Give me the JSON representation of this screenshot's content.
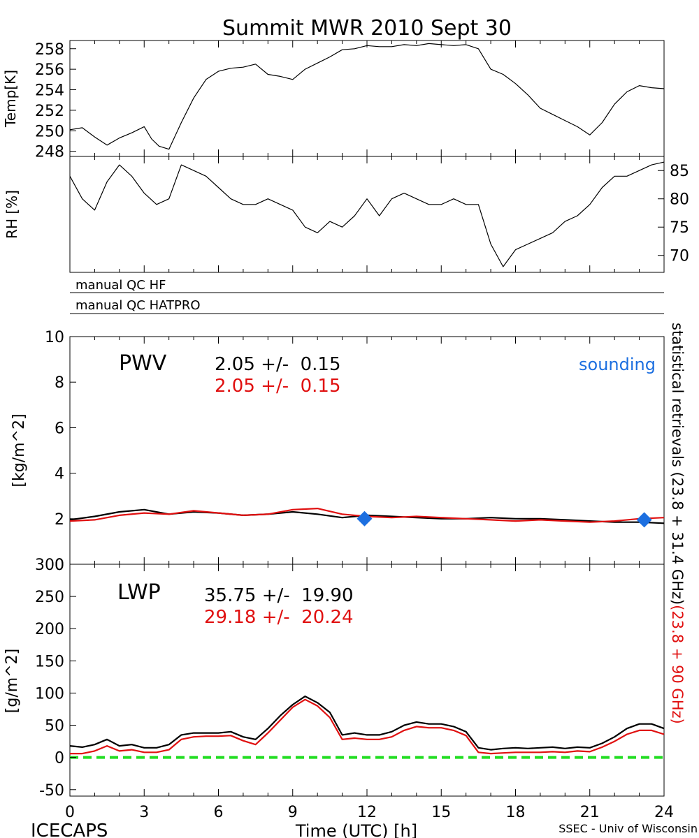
{
  "title": "Summit MWR 2010 Sept 30",
  "footer": {
    "left": "ICECAPS",
    "center": "Time (UTC) [h]",
    "right": "SSEC - Univ of Wisconsin"
  },
  "colors": {
    "black_series": "#000000",
    "red_series": "#e01010",
    "sounding": "#1c6fe0",
    "zero_line": "#22dd22"
  },
  "qc": {
    "hf_label": "manual QC HF",
    "hatpro_label": "manual QC HATPRO"
  },
  "right_label": {
    "black_part": "statistical retrievals (23.8 + 31.4 GHz)",
    "red_part": "(23.8 + 90 GHz)"
  },
  "pwv": {
    "label": "PWV",
    "black_stat": "2.05 +/-  0.15",
    "red_stat": "2.05 +/-  0.15",
    "sounding_label": "sounding"
  },
  "lwp": {
    "label": "LWP",
    "black_stat": "35.75 +/-  19.90",
    "red_stat": "29.18 +/-  20.24"
  },
  "chart_data": [
    {
      "type": "line",
      "panel": "temperature",
      "ylabel": "Temp[K]",
      "xlim": [
        0,
        24
      ],
      "ylim": [
        247.5,
        258.8
      ],
      "yticks": [
        248,
        250,
        252,
        254,
        256,
        258
      ],
      "series": [
        {
          "color": "#000000",
          "x": [
            0,
            0.5,
            1,
            1.5,
            2,
            2.5,
            3,
            3.3,
            3.6,
            4,
            4.5,
            5,
            5.5,
            6,
            6.5,
            7,
            7.5,
            8,
            8.5,
            9,
            9.5,
            10,
            10.5,
            11,
            11.5,
            12,
            12.5,
            13,
            13.5,
            14,
            14.5,
            15,
            15.5,
            16,
            16.5,
            17,
            17.5,
            18,
            18.5,
            19,
            19.5,
            20,
            20.5,
            21,
            21.5,
            22,
            22.5,
            23,
            23.5,
            24
          ],
          "values": [
            250.1,
            250.3,
            249.4,
            248.6,
            249.3,
            249.8,
            250.4,
            249.2,
            248.5,
            248.2,
            250.8,
            253.2,
            255.0,
            255.8,
            256.1,
            256.2,
            256.5,
            255.5,
            255.3,
            255.0,
            256.0,
            256.6,
            257.2,
            257.9,
            258.0,
            258.3,
            258.2,
            258.2,
            258.4,
            258.3,
            258.5,
            258.4,
            258.3,
            258.4,
            258.0,
            256.0,
            255.5,
            254.6,
            253.5,
            252.2,
            251.6,
            251.0,
            250.4,
            249.6,
            250.8,
            252.6,
            253.8,
            254.4,
            254.2,
            254.1
          ]
        }
      ]
    },
    {
      "type": "line",
      "panel": "relative-humidity",
      "ylabel": "RH [%]",
      "xlim": [
        0,
        24
      ],
      "ylim": [
        67,
        87.5
      ],
      "yticks": [
        70,
        75,
        80,
        85
      ],
      "series": [
        {
          "color": "#000000",
          "x": [
            0,
            0.5,
            1,
            1.5,
            2,
            2.5,
            3,
            3.5,
            4,
            4.5,
            5,
            5.5,
            6,
            6.5,
            7,
            7.5,
            8,
            8.5,
            9,
            9.5,
            10,
            10.5,
            11,
            11.5,
            12,
            12.5,
            13,
            13.5,
            14,
            14.5,
            15,
            15.5,
            16,
            16.5,
            17,
            17.5,
            18,
            18.5,
            19,
            19.5,
            20,
            20.5,
            21,
            21.5,
            22,
            22.5,
            23,
            23.5,
            24
          ],
          "values": [
            84,
            80,
            78,
            83,
            86,
            84,
            81,
            79,
            80,
            86,
            85,
            84,
            82,
            80,
            79,
            79,
            80,
            79,
            78,
            75,
            74,
            76,
            75,
            77,
            80,
            77,
            80,
            81,
            80,
            79,
            79,
            80,
            79,
            79,
            72,
            68,
            71,
            72,
            73,
            74,
            76,
            77,
            79,
            82,
            84,
            84,
            85,
            86,
            86.5
          ]
        }
      ]
    },
    {
      "type": "line",
      "panel": "PWV",
      "ylabel": "[kg/m^2]",
      "xlim": [
        0,
        24
      ],
      "ylim": [
        0,
        10
      ],
      "yticks": [
        0,
        2,
        4,
        6,
        8,
        10
      ],
      "series": [
        {
          "color": "#000000",
          "x": [
            0,
            1,
            2,
            3,
            4,
            5,
            6,
            7,
            8,
            9,
            10,
            11,
            12,
            13,
            14,
            15,
            16,
            17,
            18,
            19,
            20,
            21,
            22,
            23,
            24
          ],
          "values": [
            1.95,
            2.1,
            2.3,
            2.4,
            2.2,
            2.3,
            2.25,
            2.15,
            2.2,
            2.3,
            2.2,
            2.05,
            2.15,
            2.1,
            2.05,
            2.0,
            2.0,
            2.05,
            2.0,
            2.0,
            1.95,
            1.9,
            1.85,
            1.85,
            1.8
          ]
        },
        {
          "color": "#e01010",
          "x": [
            0,
            1,
            2,
            3,
            4,
            5,
            6,
            7,
            8,
            9,
            10,
            11,
            12,
            13,
            14,
            15,
            16,
            17,
            18,
            19,
            20,
            21,
            22,
            23,
            24
          ],
          "values": [
            1.9,
            1.95,
            2.15,
            2.25,
            2.2,
            2.35,
            2.25,
            2.15,
            2.2,
            2.4,
            2.45,
            2.2,
            2.1,
            2.05,
            2.1,
            2.05,
            2.0,
            1.95,
            1.9,
            1.95,
            1.9,
            1.85,
            1.9,
            2.0,
            2.05
          ]
        }
      ],
      "sounding_points": [
        {
          "x": 11.9,
          "y": 2.0
        },
        {
          "x": 23.2,
          "y": 1.95
        }
      ]
    },
    {
      "type": "line",
      "panel": "LWP",
      "ylabel": "[g/m^2]",
      "xlabel": "Time (UTC) [h]",
      "xlim": [
        0,
        24
      ],
      "ylim": [
        -60,
        300
      ],
      "xticks": [
        0,
        3,
        6,
        9,
        12,
        15,
        18,
        21,
        24
      ],
      "yticks": [
        -50,
        0,
        50,
        100,
        150,
        200,
        250,
        300
      ],
      "reference_line": {
        "y": 0,
        "color": "#22dd22",
        "style": "dashed"
      },
      "series": [
        {
          "color": "#000000",
          "x": [
            0,
            0.5,
            1,
            1.5,
            2,
            2.5,
            3,
            3.5,
            4,
            4.5,
            5,
            5.5,
            6,
            6.5,
            7,
            7.5,
            8,
            8.5,
            9,
            9.5,
            10,
            10.5,
            11,
            11.5,
            12,
            12.5,
            13,
            13.5,
            14,
            14.5,
            15,
            15.5,
            16,
            16.5,
            17,
            17.5,
            18,
            18.5,
            19,
            19.5,
            20,
            20.5,
            21,
            21.5,
            22,
            22.5,
            23,
            23.5,
            24
          ],
          "values": [
            18,
            16,
            20,
            28,
            18,
            20,
            15,
            15,
            20,
            35,
            38,
            38,
            38,
            40,
            32,
            28,
            45,
            65,
            82,
            95,
            85,
            70,
            35,
            38,
            35,
            35,
            40,
            50,
            55,
            52,
            52,
            48,
            40,
            15,
            12,
            14,
            15,
            14,
            15,
            16,
            14,
            16,
            15,
            22,
            32,
            45,
            52,
            52,
            45
          ]
        },
        {
          "color": "#e01010",
          "x": [
            0,
            0.5,
            1,
            1.5,
            2,
            2.5,
            3,
            3.5,
            4,
            4.5,
            5,
            5.5,
            6,
            6.5,
            7,
            7.5,
            8,
            8.5,
            9,
            9.5,
            10,
            10.5,
            11,
            11.5,
            12,
            12.5,
            13,
            13.5,
            14,
            14.5,
            15,
            15.5,
            16,
            16.5,
            17,
            17.5,
            18,
            18.5,
            19,
            19.5,
            20,
            20.5,
            21,
            21.5,
            22,
            22.5,
            23,
            23.5,
            24
          ],
          "values": [
            6,
            6,
            10,
            18,
            10,
            12,
            8,
            8,
            12,
            28,
            32,
            33,
            33,
            34,
            26,
            20,
            38,
            58,
            78,
            90,
            80,
            62,
            28,
            30,
            28,
            28,
            32,
            42,
            48,
            46,
            46,
            42,
            34,
            8,
            6,
            7,
            8,
            8,
            8,
            9,
            8,
            10,
            9,
            16,
            25,
            36,
            42,
            42,
            36
          ]
        }
      ]
    }
  ]
}
